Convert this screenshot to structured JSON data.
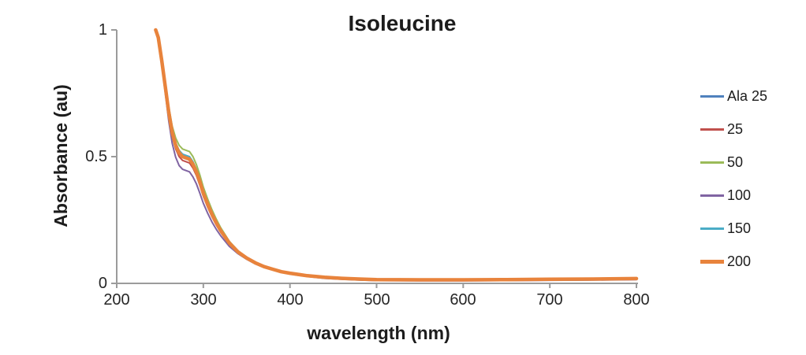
{
  "title": "Isoleucine",
  "axes": {
    "x_label": "wavelength (nm)",
    "y_label": "Absorbance (au)",
    "axis_color": "#9b9b9b"
  },
  "chart_data": {
    "type": "line",
    "title": "Isoleucine",
    "xlabel": "wavelength (nm)",
    "ylabel": "Absorbance (au)",
    "xlim": [
      200,
      800
    ],
    "ylim": [
      0,
      1
    ],
    "x_ticks": [
      200,
      300,
      400,
      500,
      600,
      700,
      800
    ],
    "y_ticks": [
      0,
      0.5,
      1
    ],
    "grid": false,
    "legend_position": "right",
    "x": [
      245,
      248,
      252,
      256,
      260,
      264,
      268,
      272,
      276,
      280,
      284,
      288,
      292,
      296,
      300,
      305,
      310,
      315,
      320,
      330,
      340,
      350,
      360,
      370,
      380,
      390,
      400,
      420,
      440,
      460,
      480,
      500,
      550,
      600,
      650,
      700,
      750,
      800
    ],
    "series": [
      {
        "name": "Ala 25",
        "color": "#4F81BD",
        "width": 2,
        "values": [
          1.0,
          0.97,
          0.88,
          0.78,
          0.68,
          0.6,
          0.55,
          0.52,
          0.505,
          0.5,
          0.495,
          0.475,
          0.445,
          0.405,
          0.36,
          0.315,
          0.275,
          0.24,
          0.21,
          0.16,
          0.125,
          0.1,
          0.08,
          0.065,
          0.055,
          0.045,
          0.038,
          0.028,
          0.021,
          0.017,
          0.014,
          0.012,
          0.011,
          0.011,
          0.012,
          0.013,
          0.014,
          0.016
        ]
      },
      {
        "name": "25",
        "color": "#C0504D",
        "width": 2,
        "values": [
          1.0,
          0.968,
          0.874,
          0.77,
          0.666,
          0.583,
          0.531,
          0.5,
          0.485,
          0.48,
          0.475,
          0.455,
          0.426,
          0.387,
          0.344,
          0.301,
          0.263,
          0.23,
          0.202,
          0.155,
          0.122,
          0.098,
          0.079,
          0.064,
          0.054,
          0.045,
          0.038,
          0.028,
          0.021,
          0.017,
          0.014,
          0.012,
          0.011,
          0.011,
          0.012,
          0.013,
          0.014,
          0.016
        ]
      },
      {
        "name": "50",
        "color": "#9BBB59",
        "width": 2,
        "values": [
          1.0,
          0.973,
          0.888,
          0.793,
          0.698,
          0.621,
          0.574,
          0.545,
          0.53,
          0.525,
          0.52,
          0.5,
          0.469,
          0.428,
          0.38,
          0.333,
          0.29,
          0.253,
          0.22,
          0.166,
          0.129,
          0.103,
          0.082,
          0.066,
          0.056,
          0.045,
          0.038,
          0.028,
          0.021,
          0.017,
          0.014,
          0.012,
          0.011,
          0.011,
          0.012,
          0.013,
          0.014,
          0.016
        ]
      },
      {
        "name": "100",
        "color": "#8064A2",
        "width": 2,
        "values": [
          1.0,
          0.965,
          0.864,
          0.753,
          0.642,
          0.553,
          0.498,
          0.465,
          0.45,
          0.445,
          0.44,
          0.42,
          0.393,
          0.356,
          0.316,
          0.277,
          0.242,
          0.213,
          0.188,
          0.146,
          0.117,
          0.095,
          0.077,
          0.063,
          0.054,
          0.044,
          0.037,
          0.027,
          0.02,
          0.016,
          0.013,
          0.011,
          0.01,
          0.01,
          0.011,
          0.012,
          0.013,
          0.015
        ]
      },
      {
        "name": "150",
        "color": "#4BACC6",
        "width": 2,
        "values": [
          1.0,
          0.971,
          0.882,
          0.783,
          0.684,
          0.604,
          0.555,
          0.525,
          0.51,
          0.505,
          0.5,
          0.48,
          0.45,
          0.41,
          0.364,
          0.319,
          0.278,
          0.243,
          0.212,
          0.161,
          0.126,
          0.101,
          0.08,
          0.065,
          0.055,
          0.045,
          0.038,
          0.028,
          0.021,
          0.017,
          0.014,
          0.012,
          0.011,
          0.011,
          0.012,
          0.013,
          0.014,
          0.016
        ]
      },
      {
        "name": "200",
        "color": "#E8833C",
        "width": 4.5,
        "values": [
          1.0,
          0.97,
          0.879,
          0.778,
          0.677,
          0.596,
          0.545,
          0.515,
          0.5,
          0.495,
          0.49,
          0.47,
          0.44,
          0.401,
          0.356,
          0.312,
          0.272,
          0.238,
          0.208,
          0.159,
          0.124,
          0.1,
          0.081,
          0.066,
          0.056,
          0.046,
          0.04,
          0.03,
          0.024,
          0.02,
          0.017,
          0.015,
          0.014,
          0.014,
          0.015,
          0.016,
          0.017,
          0.019
        ]
      }
    ]
  }
}
